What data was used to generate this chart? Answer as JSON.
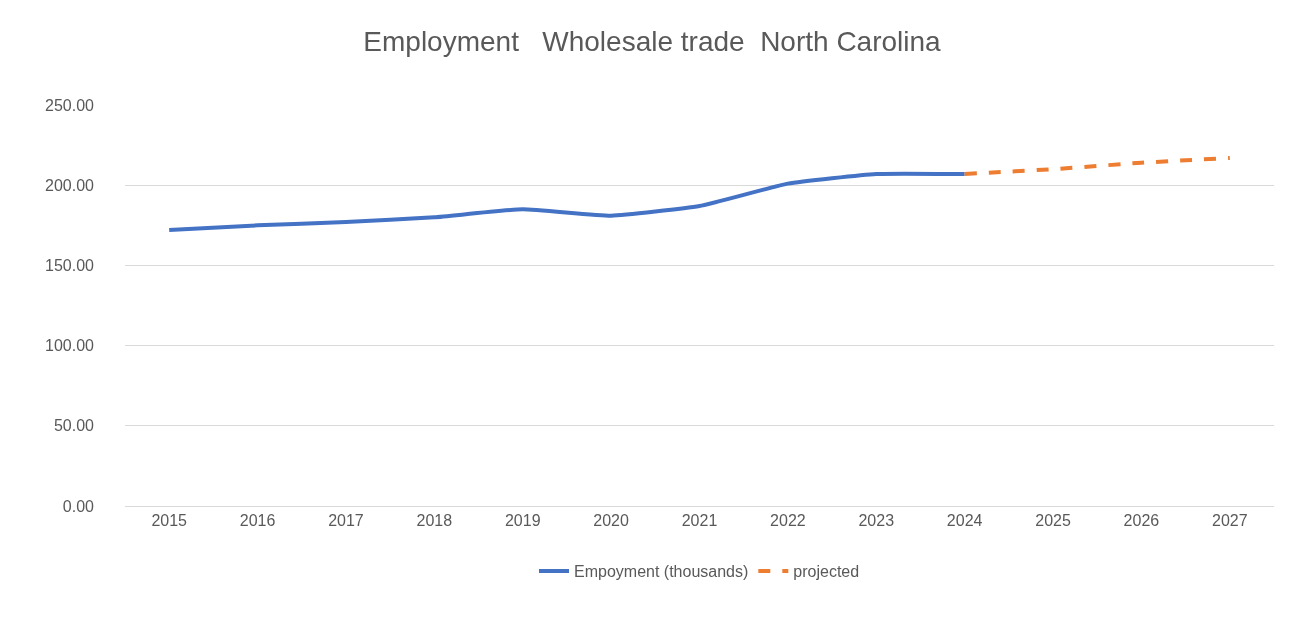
{
  "chart_data": {
    "type": "line",
    "title": "Employment   Wholesale trade  North Carolina",
    "categories": [
      "2015",
      "2016",
      "2017",
      "2018",
      "2019",
      "2020",
      "2021",
      "2022",
      "2023",
      "2024",
      "2025",
      "2026",
      "2027"
    ],
    "series": [
      {
        "name": "Empoyment (thousands)",
        "color": "#4472c4",
        "line_style": "solid",
        "values": [
          172,
          175,
          177,
          180,
          185,
          181,
          187,
          201,
          207,
          207,
          null,
          null,
          null
        ]
      },
      {
        "name": "projected",
        "color": "#ed7d31",
        "line_style": "dashed",
        "values": [
          null,
          null,
          null,
          null,
          null,
          null,
          null,
          null,
          null,
          207,
          210,
          214,
          217
        ]
      }
    ],
    "ylim": [
      0,
      250
    ],
    "yticks": [
      {
        "value": 0,
        "label": "0.00"
      },
      {
        "value": 50,
        "label": "50.00"
      },
      {
        "value": 100,
        "label": "100.00"
      },
      {
        "value": 150,
        "label": "150.00"
      },
      {
        "value": 200,
        "label": "200.00"
      },
      {
        "value": 250,
        "label": "250.00"
      }
    ],
    "grid": "y",
    "legend": "bottom",
    "marker": "none"
  }
}
